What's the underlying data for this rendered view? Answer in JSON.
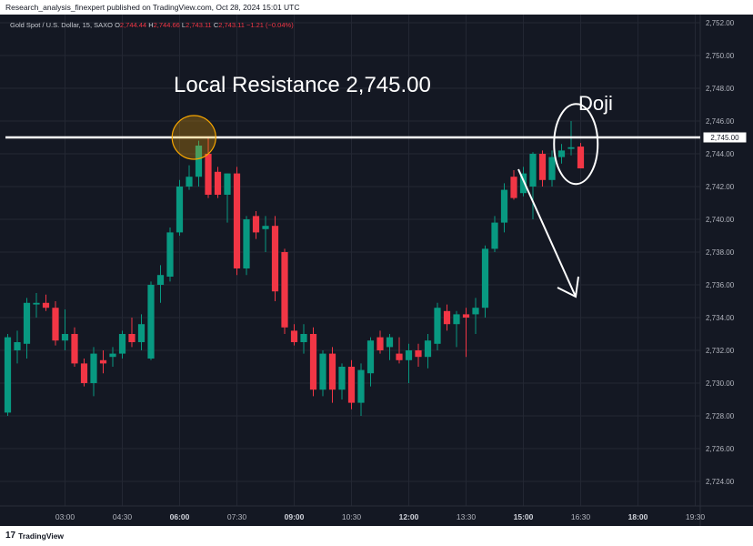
{
  "header": {
    "publisher_text": "Research_analysis_finexpert published on TradingView.com, Oct 28, 2024 15:01 UTC"
  },
  "legend": {
    "symbol": "Gold Spot / U.S. Dollar, 15, SAXO",
    "open_label": "O",
    "open": "2,744.44",
    "high_label": "H",
    "high": "2,744.66",
    "low_label": "L",
    "low": "2,743.11",
    "close_label": "C",
    "close": "2,743.11",
    "change": "−1.21 (−0.04%)"
  },
  "annotations": {
    "resistance_text": "Local Resistance 2,745.00",
    "doji_text": "Doji"
  },
  "footer": {
    "logo_text": "TradingView",
    "logo_mark": "17"
  },
  "colors": {
    "background": "#141823",
    "up": "#089981",
    "down": "#f23645",
    "grid": "#232733",
    "resistance_line": "#ffffff",
    "highlight_circle": "#f7a600"
  },
  "chart_data": {
    "type": "candlestick",
    "ylim": [
      2722.5,
      2752.5
    ],
    "y_ticks": [
      "2,724.00",
      "2,726.00",
      "2,728.00",
      "2,730.00",
      "2,732.00",
      "2,734.00",
      "2,736.00",
      "2,738.00",
      "2,740.00",
      "2,742.00",
      "2,744.00",
      "2,746.00",
      "2,748.00",
      "2,750.00",
      "2,752.00"
    ],
    "y_tick_values": [
      2724,
      2726,
      2728,
      2730,
      2732,
      2734,
      2736,
      2738,
      2740,
      2742,
      2744,
      2746,
      2748,
      2750,
      2752
    ],
    "x_ticks": [
      {
        "label": "03:00",
        "bold": false
      },
      {
        "label": "04:30",
        "bold": false
      },
      {
        "label": "06:00",
        "bold": true
      },
      {
        "label": "07:30",
        "bold": false
      },
      {
        "label": "09:00",
        "bold": true
      },
      {
        "label": "10:30",
        "bold": false
      },
      {
        "label": "12:00",
        "bold": true
      },
      {
        "label": "13:30",
        "bold": false
      },
      {
        "label": "15:00",
        "bold": true
      },
      {
        "label": "16:30",
        "bold": false
      },
      {
        "label": "18:00",
        "bold": true
      },
      {
        "label": "19:30",
        "bold": false
      }
    ],
    "x_tick_bar_index": [
      6,
      12,
      18,
      24,
      30,
      36,
      42,
      48,
      54,
      60,
      66,
      72
    ],
    "bar_count_visible": 76,
    "resistance_level": 2745.0,
    "resistance_label": "2,745.00",
    "candles": [
      {
        "o": 2728.2,
        "h": 2733.0,
        "l": 2728.0,
        "c": 2732.8
      },
      {
        "o": 2732.0,
        "h": 2733.2,
        "l": 2731.2,
        "c": 2732.5
      },
      {
        "o": 2732.4,
        "h": 2735.2,
        "l": 2731.5,
        "c": 2734.9
      },
      {
        "o": 2734.8,
        "h": 2735.5,
        "l": 2734.0,
        "c": 2734.9
      },
      {
        "o": 2734.9,
        "h": 2735.4,
        "l": 2734.4,
        "c": 2734.6
      },
      {
        "o": 2734.6,
        "h": 2735.0,
        "l": 2732.3,
        "c": 2732.6
      },
      {
        "o": 2732.6,
        "h": 2734.5,
        "l": 2732.0,
        "c": 2733.0
      },
      {
        "o": 2733.0,
        "h": 2733.4,
        "l": 2731.0,
        "c": 2731.2
      },
      {
        "o": 2731.2,
        "h": 2731.5,
        "l": 2729.8,
        "c": 2730.0
      },
      {
        "o": 2730.0,
        "h": 2732.2,
        "l": 2729.2,
        "c": 2731.8
      },
      {
        "o": 2731.4,
        "h": 2732.0,
        "l": 2730.6,
        "c": 2731.2
      },
      {
        "o": 2731.6,
        "h": 2732.2,
        "l": 2731.0,
        "c": 2731.8
      },
      {
        "o": 2731.8,
        "h": 2733.2,
        "l": 2731.5,
        "c": 2733.0
      },
      {
        "o": 2733.0,
        "h": 2734.0,
        "l": 2732.2,
        "c": 2732.5
      },
      {
        "o": 2732.5,
        "h": 2734.2,
        "l": 2732.0,
        "c": 2733.6
      },
      {
        "o": 2731.5,
        "h": 2736.2,
        "l": 2731.4,
        "c": 2736.0
      },
      {
        "o": 2736.0,
        "h": 2737.2,
        "l": 2734.9,
        "c": 2736.6
      },
      {
        "o": 2736.5,
        "h": 2739.5,
        "l": 2736.2,
        "c": 2739.2
      },
      {
        "o": 2739.2,
        "h": 2742.4,
        "l": 2739.0,
        "c": 2742.0
      },
      {
        "o": 2742.0,
        "h": 2743.3,
        "l": 2741.8,
        "c": 2742.6
      },
      {
        "o": 2742.6,
        "h": 2744.8,
        "l": 2742.0,
        "c": 2744.5
      },
      {
        "o": 2744.0,
        "h": 2745.0,
        "l": 2741.3,
        "c": 2741.5
      },
      {
        "o": 2742.9,
        "h": 2743.2,
        "l": 2741.3,
        "c": 2741.5
      },
      {
        "o": 2741.5,
        "h": 2742.8,
        "l": 2739.8,
        "c": 2742.8
      },
      {
        "o": 2742.8,
        "h": 2743.2,
        "l": 2736.6,
        "c": 2737.0
      },
      {
        "o": 2737.0,
        "h": 2740.2,
        "l": 2736.6,
        "c": 2740.0
      },
      {
        "o": 2740.2,
        "h": 2740.5,
        "l": 2738.8,
        "c": 2739.2
      },
      {
        "o": 2739.4,
        "h": 2740.2,
        "l": 2738.0,
        "c": 2739.6
      },
      {
        "o": 2739.6,
        "h": 2740.2,
        "l": 2735.0,
        "c": 2735.6
      },
      {
        "o": 2738.0,
        "h": 2738.2,
        "l": 2733.0,
        "c": 2733.4
      },
      {
        "o": 2733.2,
        "h": 2733.6,
        "l": 2732.3,
        "c": 2732.5
      },
      {
        "o": 2732.5,
        "h": 2733.6,
        "l": 2731.8,
        "c": 2733.0
      },
      {
        "o": 2733.0,
        "h": 2733.4,
        "l": 2729.2,
        "c": 2729.6
      },
      {
        "o": 2729.6,
        "h": 2732.0,
        "l": 2729.2,
        "c": 2731.8
      },
      {
        "o": 2731.8,
        "h": 2732.2,
        "l": 2728.8,
        "c": 2729.6
      },
      {
        "o": 2729.6,
        "h": 2731.2,
        "l": 2729.0,
        "c": 2731.0
      },
      {
        "o": 2731.0,
        "h": 2731.4,
        "l": 2728.4,
        "c": 2728.8
      },
      {
        "o": 2728.8,
        "h": 2731.2,
        "l": 2728.0,
        "c": 2730.8
      },
      {
        "o": 2730.6,
        "h": 2732.8,
        "l": 2729.8,
        "c": 2732.6
      },
      {
        "o": 2732.8,
        "h": 2733.2,
        "l": 2731.8,
        "c": 2732.0
      },
      {
        "o": 2732.2,
        "h": 2733.0,
        "l": 2731.4,
        "c": 2732.8
      },
      {
        "o": 2731.8,
        "h": 2732.8,
        "l": 2731.2,
        "c": 2731.4
      },
      {
        "o": 2731.4,
        "h": 2732.4,
        "l": 2730.0,
        "c": 2732.0
      },
      {
        "o": 2732.0,
        "h": 2732.4,
        "l": 2731.0,
        "c": 2731.6
      },
      {
        "o": 2731.6,
        "h": 2733.0,
        "l": 2730.9,
        "c": 2732.6
      },
      {
        "o": 2732.4,
        "h": 2734.9,
        "l": 2732.0,
        "c": 2734.6
      },
      {
        "o": 2734.4,
        "h": 2734.8,
        "l": 2733.2,
        "c": 2733.6
      },
      {
        "o": 2733.6,
        "h": 2734.4,
        "l": 2732.2,
        "c": 2734.2
      },
      {
        "o": 2734.2,
        "h": 2734.6,
        "l": 2731.6,
        "c": 2734.0
      },
      {
        "o": 2734.2,
        "h": 2735.2,
        "l": 2733.0,
        "c": 2734.6
      },
      {
        "o": 2734.6,
        "h": 2738.4,
        "l": 2734.0,
        "c": 2738.2
      },
      {
        "o": 2738.2,
        "h": 2740.2,
        "l": 2738.0,
        "c": 2739.8
      },
      {
        "o": 2739.8,
        "h": 2742.2,
        "l": 2739.2,
        "c": 2741.8
      },
      {
        "o": 2742.6,
        "h": 2743.0,
        "l": 2741.2,
        "c": 2741.3
      },
      {
        "o": 2741.6,
        "h": 2743.2,
        "l": 2741.4,
        "c": 2742.8
      },
      {
        "o": 2742.0,
        "h": 2744.1,
        "l": 2740.0,
        "c": 2744.0
      },
      {
        "o": 2744.0,
        "h": 2744.2,
        "l": 2742.0,
        "c": 2742.4
      },
      {
        "o": 2742.4,
        "h": 2744.2,
        "l": 2742.0,
        "c": 2743.8
      },
      {
        "o": 2743.8,
        "h": 2744.6,
        "l": 2743.4,
        "c": 2744.2
      },
      {
        "o": 2744.3,
        "h": 2746.0,
        "l": 2743.9,
        "c": 2744.4
      },
      {
        "o": 2744.44,
        "h": 2744.66,
        "l": 2743.11,
        "c": 2743.11
      }
    ]
  }
}
